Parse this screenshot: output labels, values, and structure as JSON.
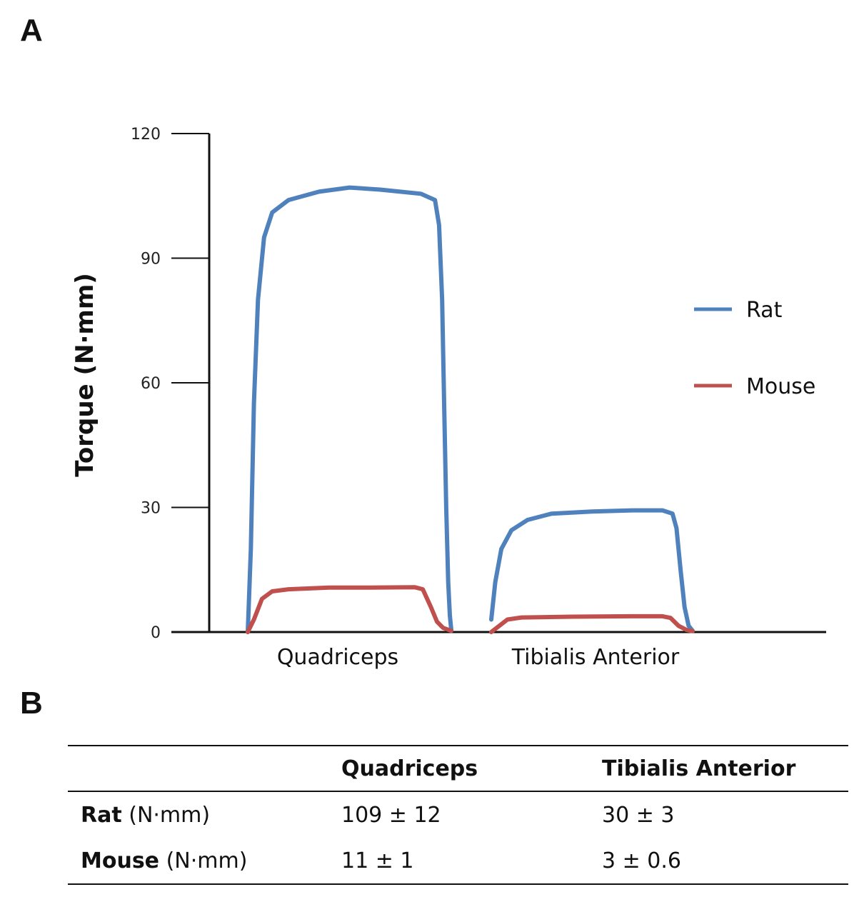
{
  "panels": {
    "a": "A",
    "b": "B"
  },
  "chart_data": {
    "type": "line",
    "ylabel": "Torque (N·mm)",
    "ylim": [
      0,
      120
    ],
    "yticks": [
      0,
      30,
      60,
      90,
      120
    ],
    "categories": [
      "Quadriceps",
      "Tibialis Anterior"
    ],
    "legend_position": "right",
    "series": [
      {
        "name": "Rat",
        "color": "#4f81bd",
        "traces": [
          {
            "category": "Quadriceps",
            "points": [
              [
                0,
                0
              ],
              [
                0.015,
                20
              ],
              [
                0.03,
                55
              ],
              [
                0.05,
                80
              ],
              [
                0.08,
                95
              ],
              [
                0.12,
                101
              ],
              [
                0.2,
                104
              ],
              [
                0.35,
                106
              ],
              [
                0.5,
                107
              ],
              [
                0.65,
                106.5
              ],
              [
                0.85,
                105.5
              ],
              [
                0.92,
                104
              ],
              [
                0.94,
                98
              ],
              [
                0.955,
                80
              ],
              [
                0.965,
                55
              ],
              [
                0.975,
                30
              ],
              [
                0.985,
                12
              ],
              [
                0.993,
                4
              ],
              [
                1.0,
                0.5
              ]
            ]
          },
          {
            "category": "Tibialis Anterior",
            "points": [
              [
                0,
                3
              ],
              [
                0.02,
                12
              ],
              [
                0.05,
                20
              ],
              [
                0.1,
                24.5
              ],
              [
                0.18,
                27
              ],
              [
                0.3,
                28.5
              ],
              [
                0.5,
                29
              ],
              [
                0.7,
                29.3
              ],
              [
                0.85,
                29.3
              ],
              [
                0.9,
                28.5
              ],
              [
                0.92,
                25
              ],
              [
                0.94,
                15
              ],
              [
                0.96,
                6
              ],
              [
                0.98,
                1.5
              ],
              [
                1.0,
                0.3
              ]
            ]
          }
        ]
      },
      {
        "name": "Mouse",
        "color": "#c0504d",
        "traces": [
          {
            "category": "Quadriceps",
            "points": [
              [
                0,
                0
              ],
              [
                0.03,
                3
              ],
              [
                0.07,
                8
              ],
              [
                0.12,
                9.8
              ],
              [
                0.2,
                10.3
              ],
              [
                0.4,
                10.7
              ],
              [
                0.6,
                10.7
              ],
              [
                0.82,
                10.8
              ],
              [
                0.86,
                10.3
              ],
              [
                0.9,
                6
              ],
              [
                0.93,
                2.5
              ],
              [
                0.96,
                1
              ],
              [
                1.0,
                0.3
              ]
            ]
          },
          {
            "category": "Tibialis Anterior",
            "points": [
              [
                0,
                0
              ],
              [
                0.04,
                1.5
              ],
              [
                0.08,
                3
              ],
              [
                0.15,
                3.5
              ],
              [
                0.4,
                3.7
              ],
              [
                0.7,
                3.8
              ],
              [
                0.85,
                3.8
              ],
              [
                0.89,
                3.4
              ],
              [
                0.93,
                1.5
              ],
              [
                0.97,
                0.5
              ],
              [
                1.0,
                0.2
              ]
            ]
          }
        ]
      }
    ]
  },
  "table": {
    "headers": [
      "",
      "Quadriceps",
      "Tibialis Anterior"
    ],
    "rows": [
      {
        "name": "Rat",
        "unit": "(N·mm)",
        "quadriceps": "109 ± 12",
        "tibialis": "30 ± 3"
      },
      {
        "name": "Mouse",
        "unit": "(N·mm)",
        "quadriceps": "11 ± 1",
        "tibialis": "3 ± 0.6"
      }
    ]
  }
}
